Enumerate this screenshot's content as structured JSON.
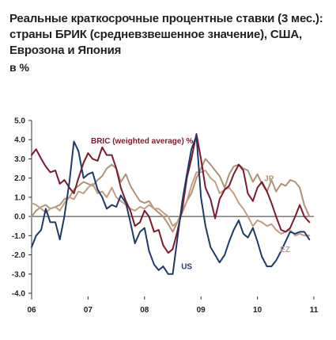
{
  "chart_data": {
    "type": "line",
    "title": "Реальные краткосрочные процентные ставки (3 мес.): страны БРИК (средневзвешенное значение), США, Еврозона и Япония",
    "unit_label": "в %",
    "xlabel": "",
    "ylabel": "",
    "ylim": [
      -4.0,
      5.0
    ],
    "y_ticks": [
      "5.0",
      "4.0",
      "3.0",
      "2.0",
      "1.0",
      "0.0",
      "-1.0",
      "-2.0",
      "-3.0",
      "-4.0"
    ],
    "x_range": [
      2006.0,
      2011.0
    ],
    "x_ticks": [
      {
        "x": 2006,
        "label": "06"
      },
      {
        "x": 2007,
        "label": "07"
      },
      {
        "x": 2008,
        "label": "08"
      },
      {
        "x": 2009,
        "label": "09"
      },
      {
        "x": 2010,
        "label": "10"
      },
      {
        "x": 2011,
        "label": "11"
      }
    ],
    "grid": false,
    "series": [
      {
        "name": "US",
        "color": "#1f3a68",
        "x": [
          2006.0,
          2006.08,
          2006.17,
          2006.25,
          2006.33,
          2006.42,
          2006.5,
          2006.58,
          2006.67,
          2006.75,
          2006.83,
          2006.92,
          2007.0,
          2007.08,
          2007.17,
          2007.25,
          2007.33,
          2007.42,
          2007.5,
          2007.58,
          2007.67,
          2007.75,
          2007.83,
          2007.92,
          2008.0,
          2008.08,
          2008.17,
          2008.25,
          2008.33,
          2008.42,
          2008.5,
          2008.58,
          2008.67,
          2008.75,
          2008.83,
          2008.92,
          2009.0,
          2009.08,
          2009.17,
          2009.25,
          2009.33,
          2009.42,
          2009.5,
          2009.58,
          2009.67,
          2009.75,
          2009.83,
          2009.92,
          2010.0,
          2010.08,
          2010.17,
          2010.25,
          2010.33,
          2010.42,
          2010.5,
          2010.58,
          2010.67,
          2010.75,
          2010.83,
          2010.92
        ],
        "values": [
          -1.6,
          -1.0,
          -0.7,
          0.4,
          -0.3,
          -0.3,
          -1.2,
          0.0,
          1.8,
          3.9,
          3.4,
          2.0,
          2.2,
          2.3,
          1.4,
          1.0,
          0.4,
          0.6,
          0.5,
          1.1,
          0.7,
          -0.3,
          -1.4,
          -0.8,
          -0.6,
          -1.8,
          -2.5,
          -2.8,
          -2.6,
          -3.0,
          -3.0,
          -1.2,
          0.8,
          2.2,
          3.5,
          4.2,
          1.0,
          -0.5,
          -1.6,
          -2.0,
          -2.4,
          -2.0,
          -1.3,
          -0.7,
          -0.2,
          -0.9,
          -1.1,
          -0.6,
          -1.3,
          -2.1,
          -2.6,
          -2.6,
          -2.3,
          -1.8,
          -1.3,
          -0.8,
          -0.9,
          -0.8,
          -0.8,
          -1.2
        ]
      },
      {
        "name": "BRIC (weighted average) %",
        "color": "#7b1a2e",
        "x": [
          2006.0,
          2006.08,
          2006.17,
          2006.25,
          2006.33,
          2006.42,
          2006.5,
          2006.58,
          2006.67,
          2006.75,
          2006.83,
          2006.92,
          2007.0,
          2007.08,
          2007.17,
          2007.25,
          2007.33,
          2007.42,
          2007.5,
          2007.58,
          2007.67,
          2007.75,
          2007.83,
          2007.92,
          2008.0,
          2008.08,
          2008.17,
          2008.25,
          2008.33,
          2008.42,
          2008.5,
          2008.58,
          2008.67,
          2008.75,
          2008.83,
          2008.92,
          2009.0,
          2009.08,
          2009.17,
          2009.25,
          2009.33,
          2009.42,
          2009.5,
          2009.58,
          2009.67,
          2009.75,
          2009.83,
          2009.92,
          2010.0,
          2010.08,
          2010.17,
          2010.25,
          2010.33,
          2010.42,
          2010.5,
          2010.58,
          2010.67,
          2010.75,
          2010.83,
          2010.92
        ],
        "values": [
          3.2,
          3.5,
          3.0,
          2.6,
          2.3,
          2.4,
          1.7,
          1.9,
          1.5,
          1.2,
          2.0,
          2.8,
          3.3,
          3.0,
          2.9,
          3.6,
          3.2,
          3.2,
          2.5,
          1.5,
          0.8,
          0.3,
          -0.5,
          -0.3,
          0.3,
          0.0,
          -0.8,
          -0.7,
          -1.5,
          -1.9,
          -1.7,
          -0.8,
          0.4,
          2.0,
          3.0,
          4.3,
          3.0,
          1.5,
          0.9,
          -0.1,
          0.9,
          1.4,
          1.6,
          2.2,
          2.7,
          2.4,
          1.2,
          0.8,
          1.5,
          1.8,
          1.3,
          0.7,
          0.0,
          -0.7,
          -0.8,
          -0.6,
          0.0,
          0.6,
          0.0,
          -0.3
        ]
      },
      {
        "name": "JP",
        "color": "#b09275",
        "x": [
          2006.0,
          2006.08,
          2006.17,
          2006.25,
          2006.33,
          2006.42,
          2006.5,
          2006.58,
          2006.67,
          2006.75,
          2006.83,
          2006.92,
          2007.0,
          2007.08,
          2007.17,
          2007.25,
          2007.33,
          2007.42,
          2007.5,
          2007.58,
          2007.67,
          2007.75,
          2007.83,
          2007.92,
          2008.0,
          2008.08,
          2008.17,
          2008.25,
          2008.33,
          2008.42,
          2008.5,
          2008.58,
          2008.67,
          2008.75,
          2008.83,
          2008.92,
          2009.0,
          2009.08,
          2009.17,
          2009.25,
          2009.33,
          2009.42,
          2009.5,
          2009.58,
          2009.67,
          2009.75,
          2009.83,
          2009.92,
          2010.0,
          2010.08,
          2010.17,
          2010.25,
          2010.33,
          2010.42,
          2010.5,
          2010.58,
          2010.67,
          2010.75,
          2010.83,
          2010.92
        ],
        "values": [
          0.0,
          0.3,
          0.5,
          0.6,
          0.4,
          0.5,
          0.6,
          0.9,
          1.0,
          1.4,
          1.6,
          1.8,
          1.7,
          1.6,
          1.9,
          2.1,
          2.5,
          2.7,
          2.5,
          1.8,
          2.2,
          1.6,
          1.2,
          0.8,
          0.7,
          0.8,
          0.4,
          0.2,
          0.0,
          -0.4,
          -0.8,
          -0.3,
          0.2,
          0.8,
          1.2,
          2.0,
          2.5,
          3.0,
          2.7,
          2.4,
          2.1,
          1.5,
          2.2,
          2.6,
          2.7,
          2.5,
          2.4,
          1.8,
          2.2,
          1.7,
          1.3,
          1.9,
          1.3,
          1.7,
          1.6,
          1.9,
          1.8,
          1.5,
          0.6,
          0.0
        ]
      },
      {
        "name": "EZ",
        "color": "#c29e83",
        "x": [
          2006.0,
          2006.08,
          2006.17,
          2006.25,
          2006.33,
          2006.42,
          2006.5,
          2006.58,
          2006.67,
          2006.75,
          2006.83,
          2006.92,
          2007.0,
          2007.08,
          2007.17,
          2007.25,
          2007.33,
          2007.42,
          2007.5,
          2007.58,
          2007.67,
          2007.75,
          2007.83,
          2007.92,
          2008.0,
          2008.08,
          2008.17,
          2008.25,
          2008.33,
          2008.42,
          2008.5,
          2008.58,
          2008.67,
          2008.75,
          2008.83,
          2008.92,
          2009.0,
          2009.08,
          2009.17,
          2009.25,
          2009.33,
          2009.42,
          2009.5,
          2009.58,
          2009.67,
          2009.75,
          2009.83,
          2009.92,
          2010.0,
          2010.08,
          2010.17,
          2010.25,
          2010.33,
          2010.42,
          2010.5,
          2010.58,
          2010.67,
          2010.75,
          2010.83,
          2010.92
        ],
        "values": [
          0.7,
          0.6,
          0.4,
          0.2,
          0.4,
          0.5,
          0.3,
          0.7,
          1.0,
          0.9,
          1.3,
          1.2,
          1.5,
          1.7,
          1.2,
          1.3,
          1.0,
          1.5,
          1.0,
          0.8,
          0.6,
          0.4,
          0.3,
          0.5,
          0.4,
          0.6,
          0.4,
          0.4,
          0.2,
          0.0,
          -0.5,
          -0.3,
          0.3,
          0.8,
          1.6,
          2.3,
          2.3,
          2.4,
          2.0,
          1.8,
          1.2,
          1.4,
          1.5,
          1.2,
          0.7,
          0.4,
          0.0,
          -0.5,
          -0.2,
          -0.3,
          -0.5,
          -0.4,
          -0.7,
          -0.9,
          -0.8,
          -0.7,
          -1.0,
          -0.9,
          -1.0,
          -1.0
        ]
      }
    ],
    "annotations": [
      {
        "text": "BRIC (weighted average) %",
        "series": "BRIC (weighted average) %",
        "x": 2007.05,
        "y": 3.8
      },
      {
        "text": "JP",
        "series": "JP",
        "x": 2010.12,
        "y": 1.85
      },
      {
        "text": "US",
        "series": "US",
        "x": 2008.65,
        "y": -2.75
      },
      {
        "text": "EZ",
        "series": "EZ",
        "x": 2010.4,
        "y": -1.85
      }
    ]
  }
}
